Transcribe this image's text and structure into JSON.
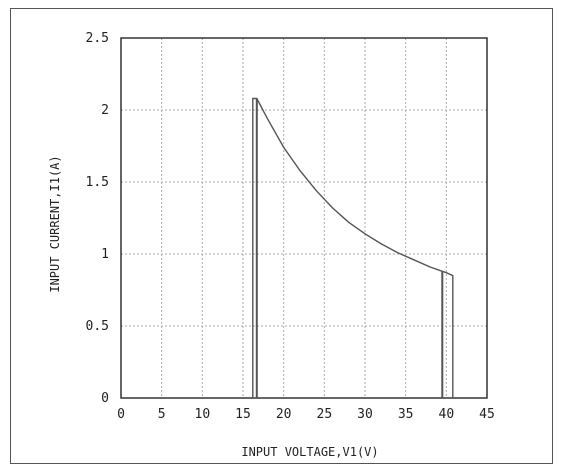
{
  "chart_data": {
    "type": "line",
    "title": "",
    "xlabel": "INPUT VOLTAGE,V1(V)",
    "ylabel": "INPUT CURRENT,I1(A)",
    "xlim": [
      0,
      45
    ],
    "ylim": [
      0,
      2.5
    ],
    "x_ticks": [
      0,
      5,
      10,
      15,
      20,
      25,
      30,
      35,
      40,
      45
    ],
    "y_ticks": [
      0,
      0.5,
      1,
      1.5,
      2,
      2.5
    ],
    "x_tick_labels": [
      "0",
      "5",
      "10",
      "15",
      "20",
      "25",
      "30",
      "35",
      "40",
      "45"
    ],
    "y_tick_labels": [
      "0",
      "0.5",
      "1",
      "1.5",
      "2",
      "2.5"
    ],
    "grid": true,
    "series": [
      {
        "x": [
          16.2,
          16.2,
          16.7,
          18,
          20,
          22,
          24,
          26,
          28,
          30,
          32,
          34,
          36,
          38,
          40,
          40.8,
          40.8
        ],
        "y": [
          0,
          2.08,
          2.08,
          1.94,
          1.74,
          1.58,
          1.44,
          1.32,
          1.22,
          1.14,
          1.07,
          1.01,
          0.96,
          0.91,
          0.87,
          0.85,
          0
        ],
        "color": "#555555"
      },
      {
        "x": [
          16.7,
          16.7
        ],
        "y": [
          0,
          2.08
        ],
        "color": "#555555"
      },
      {
        "x": [
          39.5,
          39.5
        ],
        "y": [
          0,
          0.88
        ],
        "color": "#555555"
      }
    ]
  }
}
